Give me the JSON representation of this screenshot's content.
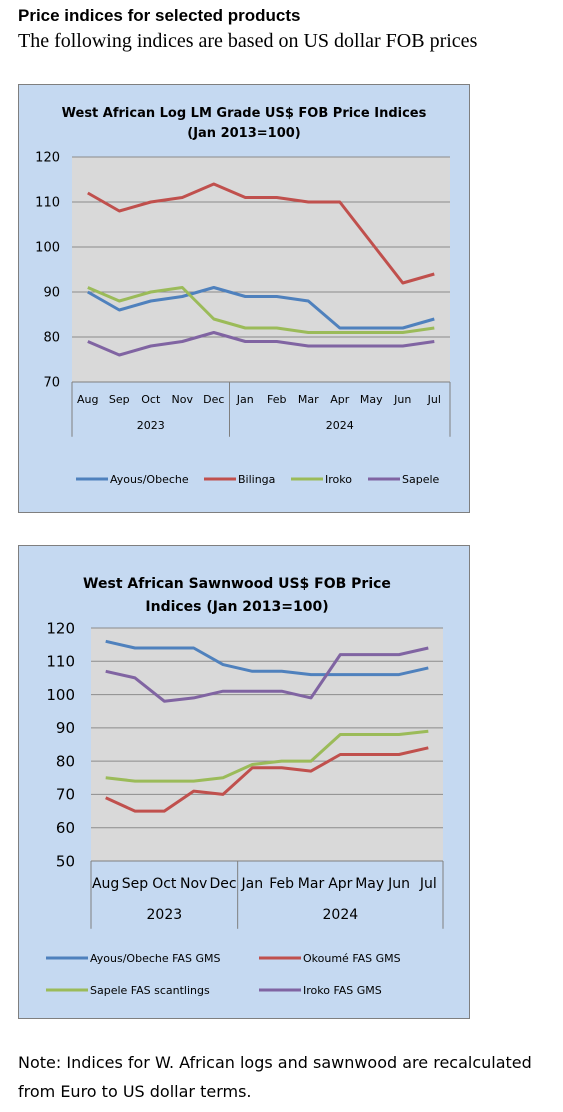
{
  "header": {
    "title": "Price indices for selected products",
    "subtitle": "The following indices are based on US dollar FOB prices"
  },
  "chart_data": [
    {
      "type": "line",
      "title_lines": [
        "West African Log LM Grade US$ FOB Price Indices",
        "(Jan 2013=100)"
      ],
      "categories": [
        "Aug",
        "Sep",
        "Oct",
        "Nov",
        "Dec",
        "Jan",
        "Feb",
        "Mar",
        "Apr",
        "May",
        "Jun",
        "Jul"
      ],
      "groups": [
        {
          "label": "2023",
          "start": 0,
          "end": 4
        },
        {
          "label": "2024",
          "start": 5,
          "end": 11
        }
      ],
      "ylim": [
        70,
        120
      ],
      "yticks": [
        70,
        80,
        90,
        100,
        110,
        120
      ],
      "grid": true,
      "legend_position": "bottom",
      "series": [
        {
          "name": "Ayous/Obeche",
          "color": "#4f81bd",
          "values": [
            90,
            86,
            88,
            89,
            91,
            89,
            89,
            88,
            82,
            82,
            82,
            84
          ]
        },
        {
          "name": "Bilinga",
          "color": "#c0504d",
          "values": [
            112,
            108,
            110,
            111,
            114,
            111,
            111,
            110,
            110,
            101,
            92,
            94
          ]
        },
        {
          "name": "Iroko",
          "color": "#9bbb59",
          "values": [
            91,
            88,
            90,
            91,
            84,
            82,
            82,
            81,
            81,
            81,
            81,
            82
          ]
        },
        {
          "name": "Sapele",
          "color": "#8064a2",
          "values": [
            79,
            76,
            78,
            79,
            81,
            79,
            79,
            78,
            78,
            78,
            78,
            79
          ]
        }
      ]
    },
    {
      "type": "line",
      "title_lines": [
        "West African Sawnwood US$ FOB Price",
        "Indices (Jan 2013=100)"
      ],
      "categories": [
        "Aug",
        "Sep",
        "Oct",
        "Nov",
        "Dec",
        "Jan",
        "Feb",
        "Mar",
        "Apr",
        "May",
        "Jun",
        "Jul"
      ],
      "groups": [
        {
          "label": "2023",
          "start": 0,
          "end": 4
        },
        {
          "label": "2024",
          "start": 5,
          "end": 11
        }
      ],
      "ylim": [
        50,
        120
      ],
      "yticks": [
        50,
        60,
        70,
        80,
        90,
        100,
        110,
        120
      ],
      "grid": true,
      "legend_position": "bottom",
      "series": [
        {
          "name": "Ayous/Obeche  FAS GMS",
          "color": "#4f81bd",
          "values": [
            116,
            114,
            114,
            114,
            109,
            107,
            107,
            106,
            106,
            106,
            106,
            108
          ]
        },
        {
          "name": "Okoumé  FAS GMS",
          "color": "#c0504d",
          "values": [
            69,
            65,
            65,
            71,
            70,
            78,
            78,
            77,
            82,
            82,
            82,
            84
          ]
        },
        {
          "name": "Sapele FAS scantlings",
          "color": "#9bbb59",
          "values": [
            75,
            74,
            74,
            74,
            75,
            79,
            80,
            80,
            88,
            88,
            88,
            89
          ]
        },
        {
          "name": "Iroko FAS GMS",
          "color": "#8064a2",
          "values": [
            107,
            105,
            98,
            99,
            101,
            101,
            101,
            99,
            112,
            112,
            112,
            114
          ]
        }
      ]
    }
  ],
  "note": "Note: Indices for W. African logs and sawnwood are recalculated from Euro to US dollar terms."
}
